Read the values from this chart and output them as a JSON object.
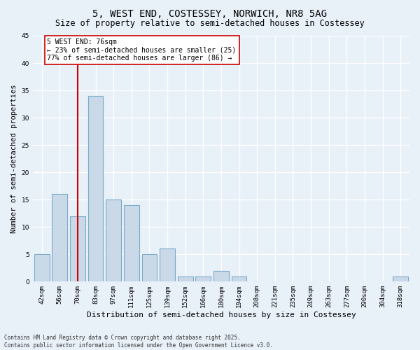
{
  "title": "5, WEST END, COSTESSEY, NORWICH, NR8 5AG",
  "subtitle": "Size of property relative to semi-detached houses in Costessey",
  "xlabel": "Distribution of semi-detached houses by size in Costessey",
  "ylabel": "Number of semi-detached properties",
  "categories": [
    "42sqm",
    "56sqm",
    "70sqm",
    "83sqm",
    "97sqm",
    "111sqm",
    "125sqm",
    "139sqm",
    "152sqm",
    "166sqm",
    "180sqm",
    "194sqm",
    "208sqm",
    "221sqm",
    "235sqm",
    "249sqm",
    "263sqm",
    "277sqm",
    "290sqm",
    "304sqm",
    "318sqm"
  ],
  "values": [
    5,
    16,
    12,
    34,
    15,
    14,
    5,
    6,
    1,
    1,
    2,
    1,
    0,
    0,
    0,
    0,
    0,
    0,
    0,
    0,
    1
  ],
  "bar_color": "#c9d9e8",
  "bar_edge_color": "#7aaac8",
  "background_color": "#e8f0f8",
  "grid_color": "#ffffff",
  "vline_color": "#cc0000",
  "vline_pos": 2.0,
  "annotation_text": "5 WEST END: 76sqm\n← 23% of semi-detached houses are smaller (25)\n77% of semi-detached houses are larger (86) →",
  "annotation_box_color": "#ffffff",
  "annotation_box_edge": "#cc0000",
  "ylim": [
    0,
    45
  ],
  "yticks": [
    0,
    5,
    10,
    15,
    20,
    25,
    30,
    35,
    40,
    45
  ],
  "footer": "Contains HM Land Registry data © Crown copyright and database right 2025.\nContains public sector information licensed under the Open Government Licence v3.0.",
  "title_fontsize": 10,
  "subtitle_fontsize": 8.5,
  "xlabel_fontsize": 8,
  "ylabel_fontsize": 7.5,
  "tick_fontsize": 6.5,
  "annotation_fontsize": 7,
  "footer_fontsize": 5.5
}
